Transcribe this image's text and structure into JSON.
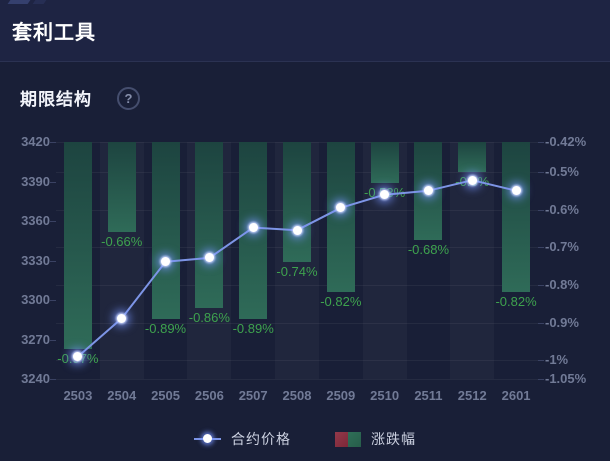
{
  "header": {
    "title": "套利工具"
  },
  "section": {
    "title": "期限结构",
    "help_glyph": "?"
  },
  "chart_data": {
    "type": "combo: line + bar",
    "title": "期限结构",
    "categories": [
      "2503",
      "2504",
      "2505",
      "2506",
      "2507",
      "2508",
      "2509",
      "2510",
      "2511",
      "2512",
      "2601"
    ],
    "series": [
      {
        "name": "合约价格",
        "type": "line",
        "values": [
          3257,
          3286,
          3329,
          3332,
          3355,
          3353,
          3370,
          3380,
          3383,
          3391,
          3383
        ]
      },
      {
        "name": "涨跌幅",
        "type": "bar",
        "values": [
          -0.97,
          -0.66,
          -0.89,
          -0.86,
          -0.89,
          -0.74,
          -0.82,
          -0.53,
          -0.68,
          -0.5,
          -0.82
        ],
        "labels": [
          "-0.97%",
          "-0.66%",
          "-0.89%",
          "-0.86%",
          "-0.89%",
          "-0.74%",
          "-0.82%",
          "-0.53%",
          "-0.68%",
          "-0.5%",
          "-0.82%"
        ]
      }
    ],
    "left_axis": {
      "ticks": [
        3420,
        3390,
        3360,
        3330,
        3300,
        3270,
        3240
      ],
      "max": 3420,
      "min": 3240
    },
    "right_axis": {
      "tick_labels": [
        "-0.42%",
        "-0.5%",
        "-0.6%",
        "-0.7%",
        "-0.8%",
        "-0.9%",
        "-1%",
        "-1.05%"
      ],
      "tick_values": [
        -0.42,
        -0.5,
        -0.6,
        -0.7,
        -0.8,
        -0.9,
        -1,
        -1.05
      ],
      "max": -0.42,
      "min": -1.05
    },
    "legend": [
      "合约价格",
      "涨跌幅"
    ],
    "legend_position": "bottom",
    "grid": true,
    "alternating_bands": true
  },
  "colors": {
    "background": "#191f37",
    "header_background": "#1e2443",
    "line": "#7d95e6",
    "point_core": "#ffffff",
    "point_glow": "#89a4ff",
    "bar_top": "#1d4440",
    "bar_bottom": "#2f6b58",
    "bar_label": "#3ea24e",
    "axis_label": "#717a96",
    "legend_red": "#8c3242",
    "legend_green": "#2c6a52"
  }
}
